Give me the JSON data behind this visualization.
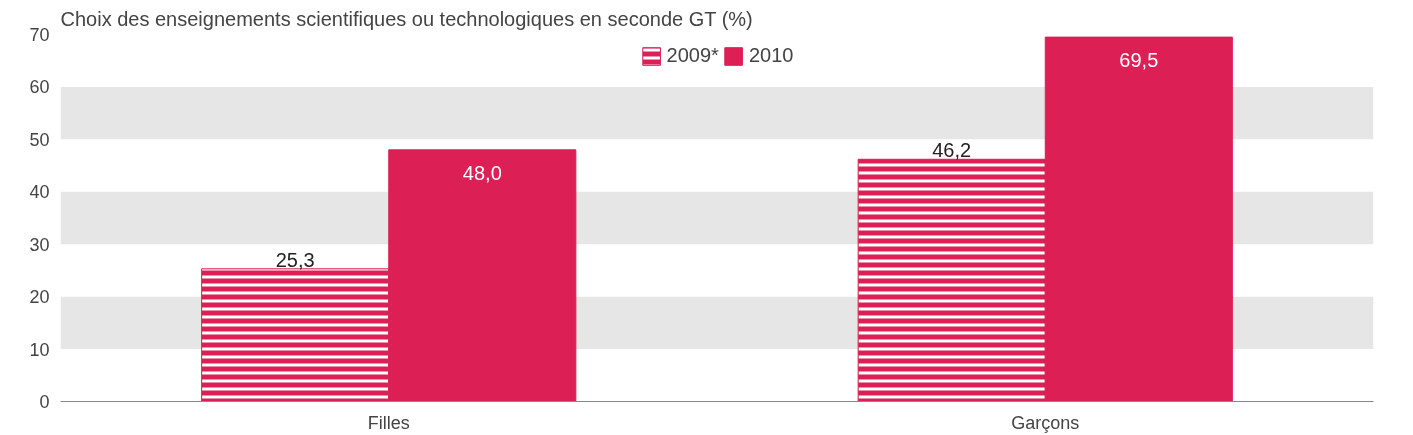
{
  "chart_data": {
    "type": "bar",
    "title": "Choix des enseignements scientifiques ou technologiques en seconde GT (%)",
    "categories": [
      "Filles",
      "Garçons"
    ],
    "series": [
      {
        "name": "2009*",
        "color": "#dc1f55",
        "values": [
          25.3,
          46.2
        ],
        "value_labels": [
          "25,3",
          "46,2"
        ]
      },
      {
        "name": "2010",
        "color": "#dc1f55",
        "values": [
          48.0,
          69.5
        ],
        "value_labels": [
          "48,0",
          "69,5"
        ]
      }
    ],
    "ylim": [
      0,
      70
    ],
    "yticks": [
      0,
      10,
      20,
      30,
      40,
      50,
      60,
      70
    ],
    "legend": "top"
  }
}
